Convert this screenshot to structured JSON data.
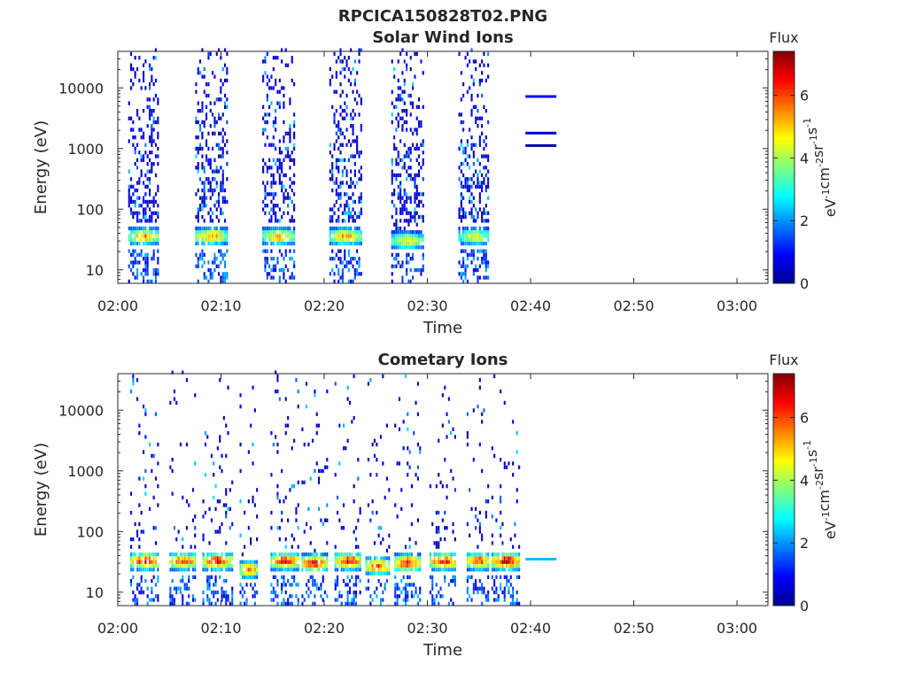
{
  "figure_title": "RPCICA150828T02.PNG",
  "chart_data": [
    {
      "type": "heatmap",
      "title": "Solar Wind Ions",
      "xlabel": "Time",
      "ylabel": "Energy (eV)",
      "x_ticks": [
        "02:00",
        "02:10",
        "02:20",
        "02:30",
        "02:40",
        "02:50",
        "03:00"
      ],
      "x_range_minutes": [
        0,
        63
      ],
      "y_ticks": [
        "10",
        "100",
        "1000",
        "10000"
      ],
      "y_scale": "log",
      "y_range_eV": [
        6,
        40000
      ],
      "colorbar": {
        "label": "Flux",
        "unit_label": "eV-1cm-2sr-1s-1",
        "ticks": [
          "0",
          "2",
          "4",
          "6"
        ],
        "range": [
          0,
          7.4
        ],
        "colormap": "jet"
      },
      "bursts": [
        {
          "start_min": 1.0,
          "end_min": 4.0,
          "peak_eV": 33,
          "peak_flux": 5.5
        },
        {
          "start_min": 7.5,
          "end_min": 10.5,
          "peak_eV": 33,
          "peak_flux": 5.7
        },
        {
          "start_min": 14.0,
          "end_min": 17.0,
          "peak_eV": 33,
          "peak_flux": 5.4
        },
        {
          "start_min": 20.5,
          "end_min": 23.5,
          "peak_eV": 33,
          "peak_flux": 5.6
        },
        {
          "start_min": 26.5,
          "end_min": 29.5,
          "peak_eV": 28,
          "peak_flux": 5.0
        },
        {
          "start_min": 33.0,
          "end_min": 36.0,
          "peak_eV": 33,
          "peak_flux": 4.8
        }
      ],
      "flat_lines": [
        {
          "start_min": 39.5,
          "end_min": 42.5,
          "eV": 7200,
          "flux": 1.0
        },
        {
          "start_min": 39.5,
          "end_min": 42.5,
          "eV": 1800,
          "flux": 0.7
        },
        {
          "start_min": 39.5,
          "end_min": 42.5,
          "eV": 1120,
          "flux": 0.3
        }
      ]
    },
    {
      "type": "heatmap",
      "title": "Cometary Ions",
      "xlabel": "Time",
      "ylabel": "Energy (eV)",
      "x_ticks": [
        "02:00",
        "02:10",
        "02:20",
        "02:30",
        "02:40",
        "02:50",
        "03:00"
      ],
      "x_range_minutes": [
        0,
        63
      ],
      "y_ticks": [
        "10",
        "100",
        "1000",
        "10000"
      ],
      "y_scale": "log",
      "y_range_eV": [
        6,
        40000
      ],
      "colorbar": {
        "label": "Flux",
        "unit_label": "eV-1cm-2sr-1s-1",
        "ticks": [
          "0",
          "2",
          "4",
          "6"
        ],
        "range": [
          0,
          7.4
        ],
        "colormap": "jet"
      },
      "bursts": [
        {
          "start_min": 1.2,
          "end_min": 4.0,
          "peak_eV": 30,
          "peak_flux": 6.8
        },
        {
          "start_min": 5.0,
          "end_min": 7.5,
          "peak_eV": 30,
          "peak_flux": 6.5
        },
        {
          "start_min": 8.2,
          "end_min": 11.0,
          "peak_eV": 30,
          "peak_flux": 6.8
        },
        {
          "start_min": 11.8,
          "end_min": 13.5,
          "peak_eV": 22,
          "peak_flux": 6.0
        },
        {
          "start_min": 14.8,
          "end_min": 17.5,
          "peak_eV": 30,
          "peak_flux": 6.8
        },
        {
          "start_min": 17.8,
          "end_min": 20.2,
          "peak_eV": 28,
          "peak_flux": 6.9
        },
        {
          "start_min": 21.0,
          "end_min": 23.5,
          "peak_eV": 30,
          "peak_flux": 7.0
        },
        {
          "start_min": 24.0,
          "end_min": 26.2,
          "peak_eV": 25,
          "peak_flux": 6.5
        },
        {
          "start_min": 26.8,
          "end_min": 29.2,
          "peak_eV": 28,
          "peak_flux": 6.9
        },
        {
          "start_min": 30.2,
          "end_min": 32.8,
          "peak_eV": 30,
          "peak_flux": 6.8
        },
        {
          "start_min": 33.8,
          "end_min": 36.0,
          "peak_eV": 30,
          "peak_flux": 6.4
        },
        {
          "start_min": 36.2,
          "end_min": 39.0,
          "peak_eV": 30,
          "peak_flux": 7.2
        }
      ],
      "flat_lines": [
        {
          "start_min": 39.5,
          "end_min": 42.5,
          "eV": 35,
          "flux": 2.3
        }
      ]
    }
  ]
}
